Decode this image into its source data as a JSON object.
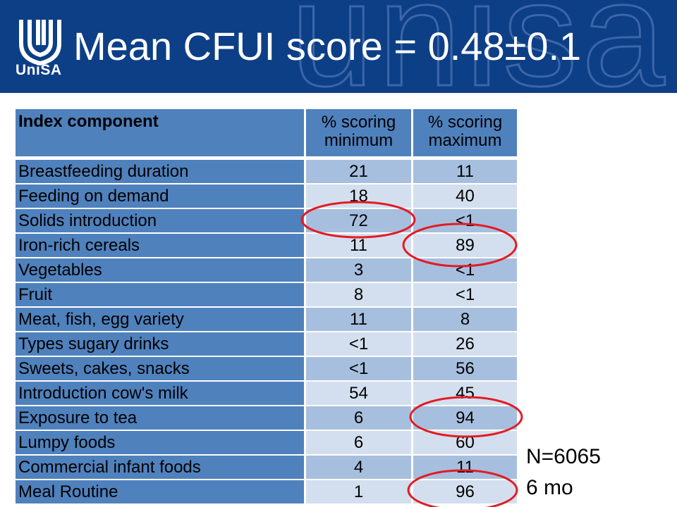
{
  "header": {
    "title": "Mean CFUI score = 0.48±0.1",
    "logo_text": "UniSA",
    "watermark_text": "unisa",
    "background_color": "#0d3f87"
  },
  "table": {
    "headers": {
      "component": "Index component",
      "min_line1": "% scoring",
      "min_line2": "minimum",
      "max_line1": "% scoring",
      "max_line2": "maximum"
    },
    "rows": [
      {
        "component": "Breastfeeding duration",
        "min": "21",
        "max": "11"
      },
      {
        "component": "Feeding on demand",
        "min": "18",
        "max": "40"
      },
      {
        "component": "Solids introduction",
        "min": "72",
        "max": "<1"
      },
      {
        "component": "Iron-rich cereals",
        "min": "11",
        "max": "89"
      },
      {
        "component": "Vegetables",
        "min": "3",
        "max": "<1"
      },
      {
        "component": "Fruit",
        "min": "8",
        "max": "<1"
      },
      {
        "component": "Meat, fish, egg variety",
        "min": "11",
        "max": "8"
      },
      {
        "component": "Types sugary drinks",
        "min": "<1",
        "max": "26"
      },
      {
        "component": "Sweets, cakes, snacks",
        "min": "<1",
        "max": "56"
      },
      {
        "component": "Introduction cow's milk",
        "min": "54",
        "max": "45"
      },
      {
        "component": "Exposure to tea",
        "min": "6",
        "max": "94"
      },
      {
        "component": "Lumpy foods",
        "min": "6",
        "max": "60"
      },
      {
        "component": "Commercial infant foods",
        "min": "4",
        "max": "11"
      },
      {
        "component": "Meal Routine",
        "min": "1",
        "max": "96"
      }
    ],
    "header_color": "#4f81bd",
    "row_color_odd": "#a7bfde",
    "row_color_even": "#d3dfee"
  },
  "notes": {
    "sample_size": "N=6065",
    "age": "6 mo"
  },
  "annotations": {
    "circle_color": "#e31b23",
    "circled_cells": [
      "Solids introduction minimum",
      "Iron-rich cereals maximum",
      "Exposure to tea maximum",
      "Meal Routine maximum"
    ]
  }
}
